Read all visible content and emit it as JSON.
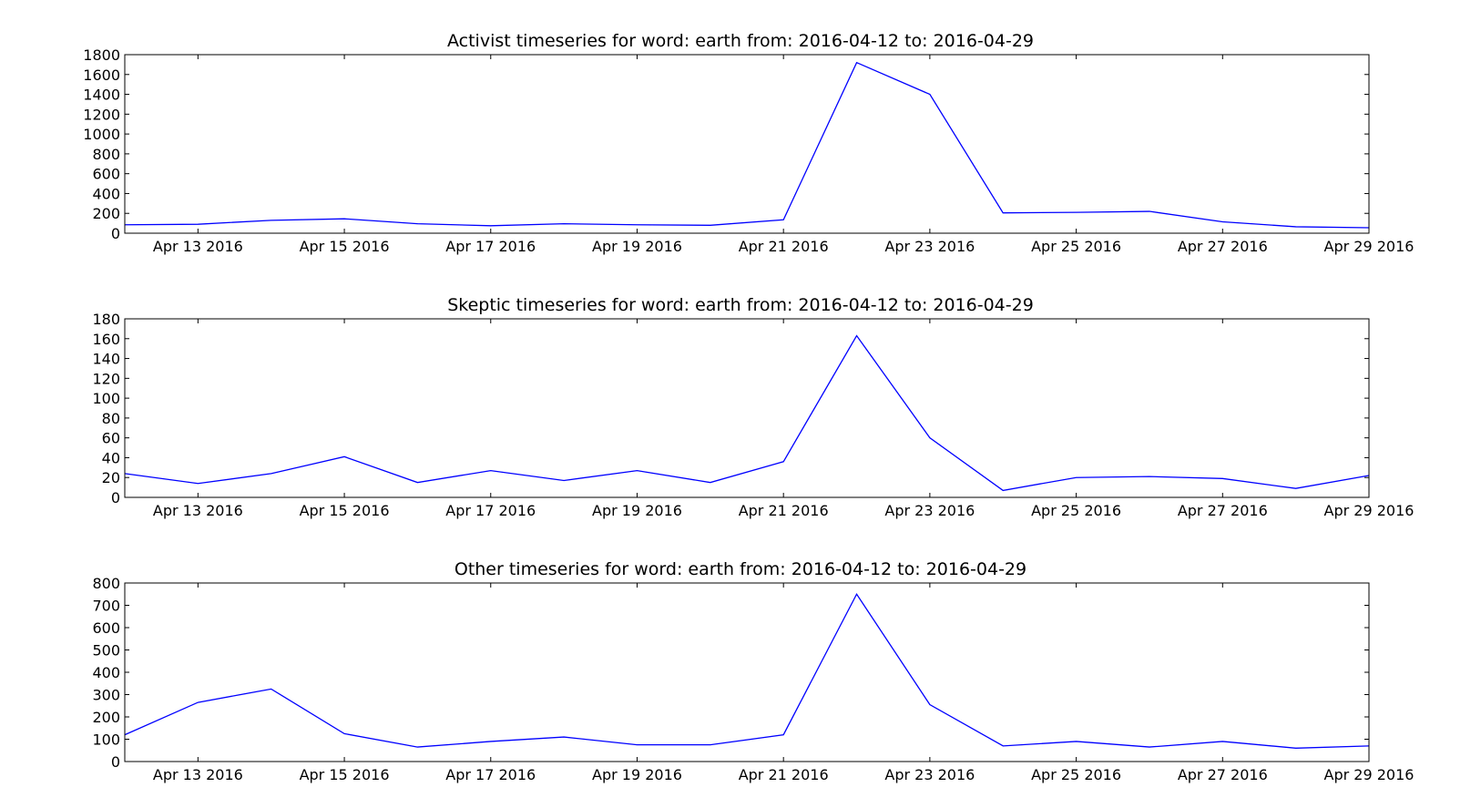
{
  "chart_data": [
    {
      "type": "line",
      "title": "Activist timeseries for word: earth from: 2016-04-12 to: 2016-04-29",
      "xlabel": "",
      "ylabel": "",
      "x": [
        "2016-04-12",
        "2016-04-13",
        "2016-04-14",
        "2016-04-15",
        "2016-04-16",
        "2016-04-17",
        "2016-04-18",
        "2016-04-19",
        "2016-04-20",
        "2016-04-21",
        "2016-04-22",
        "2016-04-23",
        "2016-04-24",
        "2016-04-25",
        "2016-04-26",
        "2016-04-27",
        "2016-04-28",
        "2016-04-29"
      ],
      "xlim": [
        "2016-04-12",
        "2016-04-29"
      ],
      "xticks": [
        "2016-04-13",
        "2016-04-15",
        "2016-04-17",
        "2016-04-19",
        "2016-04-21",
        "2016-04-23",
        "2016-04-25",
        "2016-04-27",
        "2016-04-29"
      ],
      "xtick_labels": [
        "Apr 13 2016",
        "Apr 15 2016",
        "Apr 17 2016",
        "Apr 19 2016",
        "Apr 21 2016",
        "Apr 23 2016",
        "Apr 25 2016",
        "Apr 27 2016",
        "Apr 29 2016"
      ],
      "ylim": [
        0,
        1800
      ],
      "yticks": [
        0,
        200,
        400,
        600,
        800,
        1000,
        1200,
        1400,
        1600,
        1800
      ],
      "ytick_labels": [
        "0",
        "200",
        "400",
        "600",
        "800",
        "1000",
        "1200",
        "1400",
        "1600",
        "1800"
      ],
      "series": [
        {
          "values": [
            85,
            90,
            130,
            145,
            95,
            75,
            95,
            85,
            80,
            135,
            1720,
            1400,
            205,
            210,
            220,
            115,
            65,
            55
          ],
          "color": "#0000ff"
        }
      ],
      "grid": false
    },
    {
      "type": "line",
      "title": "Skeptic timeseries for word: earth from: 2016-04-12 to: 2016-04-29",
      "xlabel": "",
      "ylabel": "",
      "x": [
        "2016-04-12",
        "2016-04-13",
        "2016-04-14",
        "2016-04-15",
        "2016-04-16",
        "2016-04-17",
        "2016-04-18",
        "2016-04-19",
        "2016-04-20",
        "2016-04-21",
        "2016-04-22",
        "2016-04-23",
        "2016-04-24",
        "2016-04-25",
        "2016-04-26",
        "2016-04-27",
        "2016-04-28",
        "2016-04-29"
      ],
      "xlim": [
        "2016-04-12",
        "2016-04-29"
      ],
      "xticks": [
        "2016-04-13",
        "2016-04-15",
        "2016-04-17",
        "2016-04-19",
        "2016-04-21",
        "2016-04-23",
        "2016-04-25",
        "2016-04-27",
        "2016-04-29"
      ],
      "xtick_labels": [
        "Apr 13 2016",
        "Apr 15 2016",
        "Apr 17 2016",
        "Apr 19 2016",
        "Apr 21 2016",
        "Apr 23 2016",
        "Apr 25 2016",
        "Apr 27 2016",
        "Apr 29 2016"
      ],
      "ylim": [
        0,
        180
      ],
      "yticks": [
        0,
        20,
        40,
        60,
        80,
        100,
        120,
        140,
        160,
        180
      ],
      "ytick_labels": [
        "0",
        "20",
        "40",
        "60",
        "80",
        "100",
        "120",
        "140",
        "160",
        "180"
      ],
      "series": [
        {
          "values": [
            24,
            14,
            24,
            41,
            15,
            27,
            17,
            27,
            15,
            36,
            163,
            60,
            7,
            20,
            21,
            19,
            9,
            22
          ],
          "color": "#0000ff"
        }
      ],
      "grid": false
    },
    {
      "type": "line",
      "title": "Other timeseries for word: earth from: 2016-04-12 to: 2016-04-29",
      "xlabel": "",
      "ylabel": "",
      "x": [
        "2016-04-12",
        "2016-04-13",
        "2016-04-14",
        "2016-04-15",
        "2016-04-16",
        "2016-04-17",
        "2016-04-18",
        "2016-04-19",
        "2016-04-20",
        "2016-04-21",
        "2016-04-22",
        "2016-04-23",
        "2016-04-24",
        "2016-04-25",
        "2016-04-26",
        "2016-04-27",
        "2016-04-28",
        "2016-04-29"
      ],
      "xlim": [
        "2016-04-12",
        "2016-04-29"
      ],
      "xticks": [
        "2016-04-13",
        "2016-04-15",
        "2016-04-17",
        "2016-04-19",
        "2016-04-21",
        "2016-04-23",
        "2016-04-25",
        "2016-04-27",
        "2016-04-29"
      ],
      "xtick_labels": [
        "Apr 13 2016",
        "Apr 15 2016",
        "Apr 17 2016",
        "Apr 19 2016",
        "Apr 21 2016",
        "Apr 23 2016",
        "Apr 25 2016",
        "Apr 27 2016",
        "Apr 29 2016"
      ],
      "ylim": [
        0,
        800
      ],
      "yticks": [
        0,
        100,
        200,
        300,
        400,
        500,
        600,
        700,
        800
      ],
      "ytick_labels": [
        "0",
        "100",
        "200",
        "300",
        "400",
        "500",
        "600",
        "700",
        "800"
      ],
      "series": [
        {
          "values": [
            120,
            265,
            325,
            125,
            65,
            90,
            110,
            75,
            75,
            120,
            750,
            255,
            70,
            90,
            65,
            90,
            60,
            70
          ],
          "color": "#0000ff"
        }
      ],
      "grid": false
    }
  ]
}
